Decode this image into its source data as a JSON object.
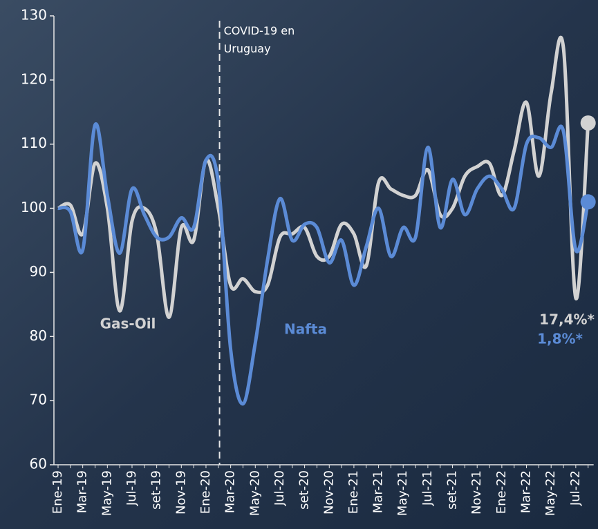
{
  "chart_data": {
    "type": "line",
    "categories": [
      "Ene-19",
      null,
      "Mar-19",
      null,
      "May-19",
      null,
      "Jul-19",
      null,
      "set-19",
      null,
      "Nov-19",
      null,
      "Ene-20",
      null,
      "Mar-20",
      null,
      "May-20",
      null,
      "Jul-20",
      null,
      "set-20",
      null,
      "Nov-20",
      null,
      "Ene-21",
      null,
      "Mar-21",
      null,
      "May-21",
      null,
      "Jul-21",
      null,
      "set-21",
      null,
      "Nov-21",
      null,
      "Ene-22",
      null,
      "Mar-22",
      null,
      "May-22",
      null,
      "Jul-22",
      null
    ],
    "series": [
      {
        "name": "Gas-Oil",
        "color": "#d2d2d2",
        "end_label": "17,4%*",
        "values": [
          100,
          100.5,
          96,
          107,
          100,
          84,
          98,
          100,
          96,
          83,
          97,
          95,
          107.5,
          100,
          88,
          89,
          87,
          88,
          95.5,
          96,
          97,
          92.5,
          92.5,
          97.5,
          96,
          91,
          104,
          103,
          102,
          102,
          106,
          99,
          100,
          105,
          106.5,
          107,
          102,
          109,
          116.5,
          105,
          118,
          125,
          86,
          113.3
        ]
      },
      {
        "name": "Nafta",
        "color": "#5b8bd6",
        "end_label": "1,8%*",
        "values": [
          100,
          99.5,
          93.5,
          113,
          102,
          93,
          103,
          99,
          95.5,
          95.5,
          98.5,
          97,
          107.5,
          104,
          78,
          69.5,
          79,
          92,
          101.5,
          95,
          97.5,
          97,
          91.5,
          95,
          88,
          94,
          100,
          92.5,
          97,
          95.5,
          109.5,
          97,
          104.5,
          99,
          103,
          105,
          103,
          100,
          110,
          111,
          109.5,
          112,
          93.5,
          101
        ]
      }
    ],
    "annotation": "COVID-19 en Uruguay",
    "ylim": [
      60,
      130
    ],
    "yticks": [
      60,
      70,
      80,
      90,
      100,
      110,
      120,
      130
    ]
  }
}
